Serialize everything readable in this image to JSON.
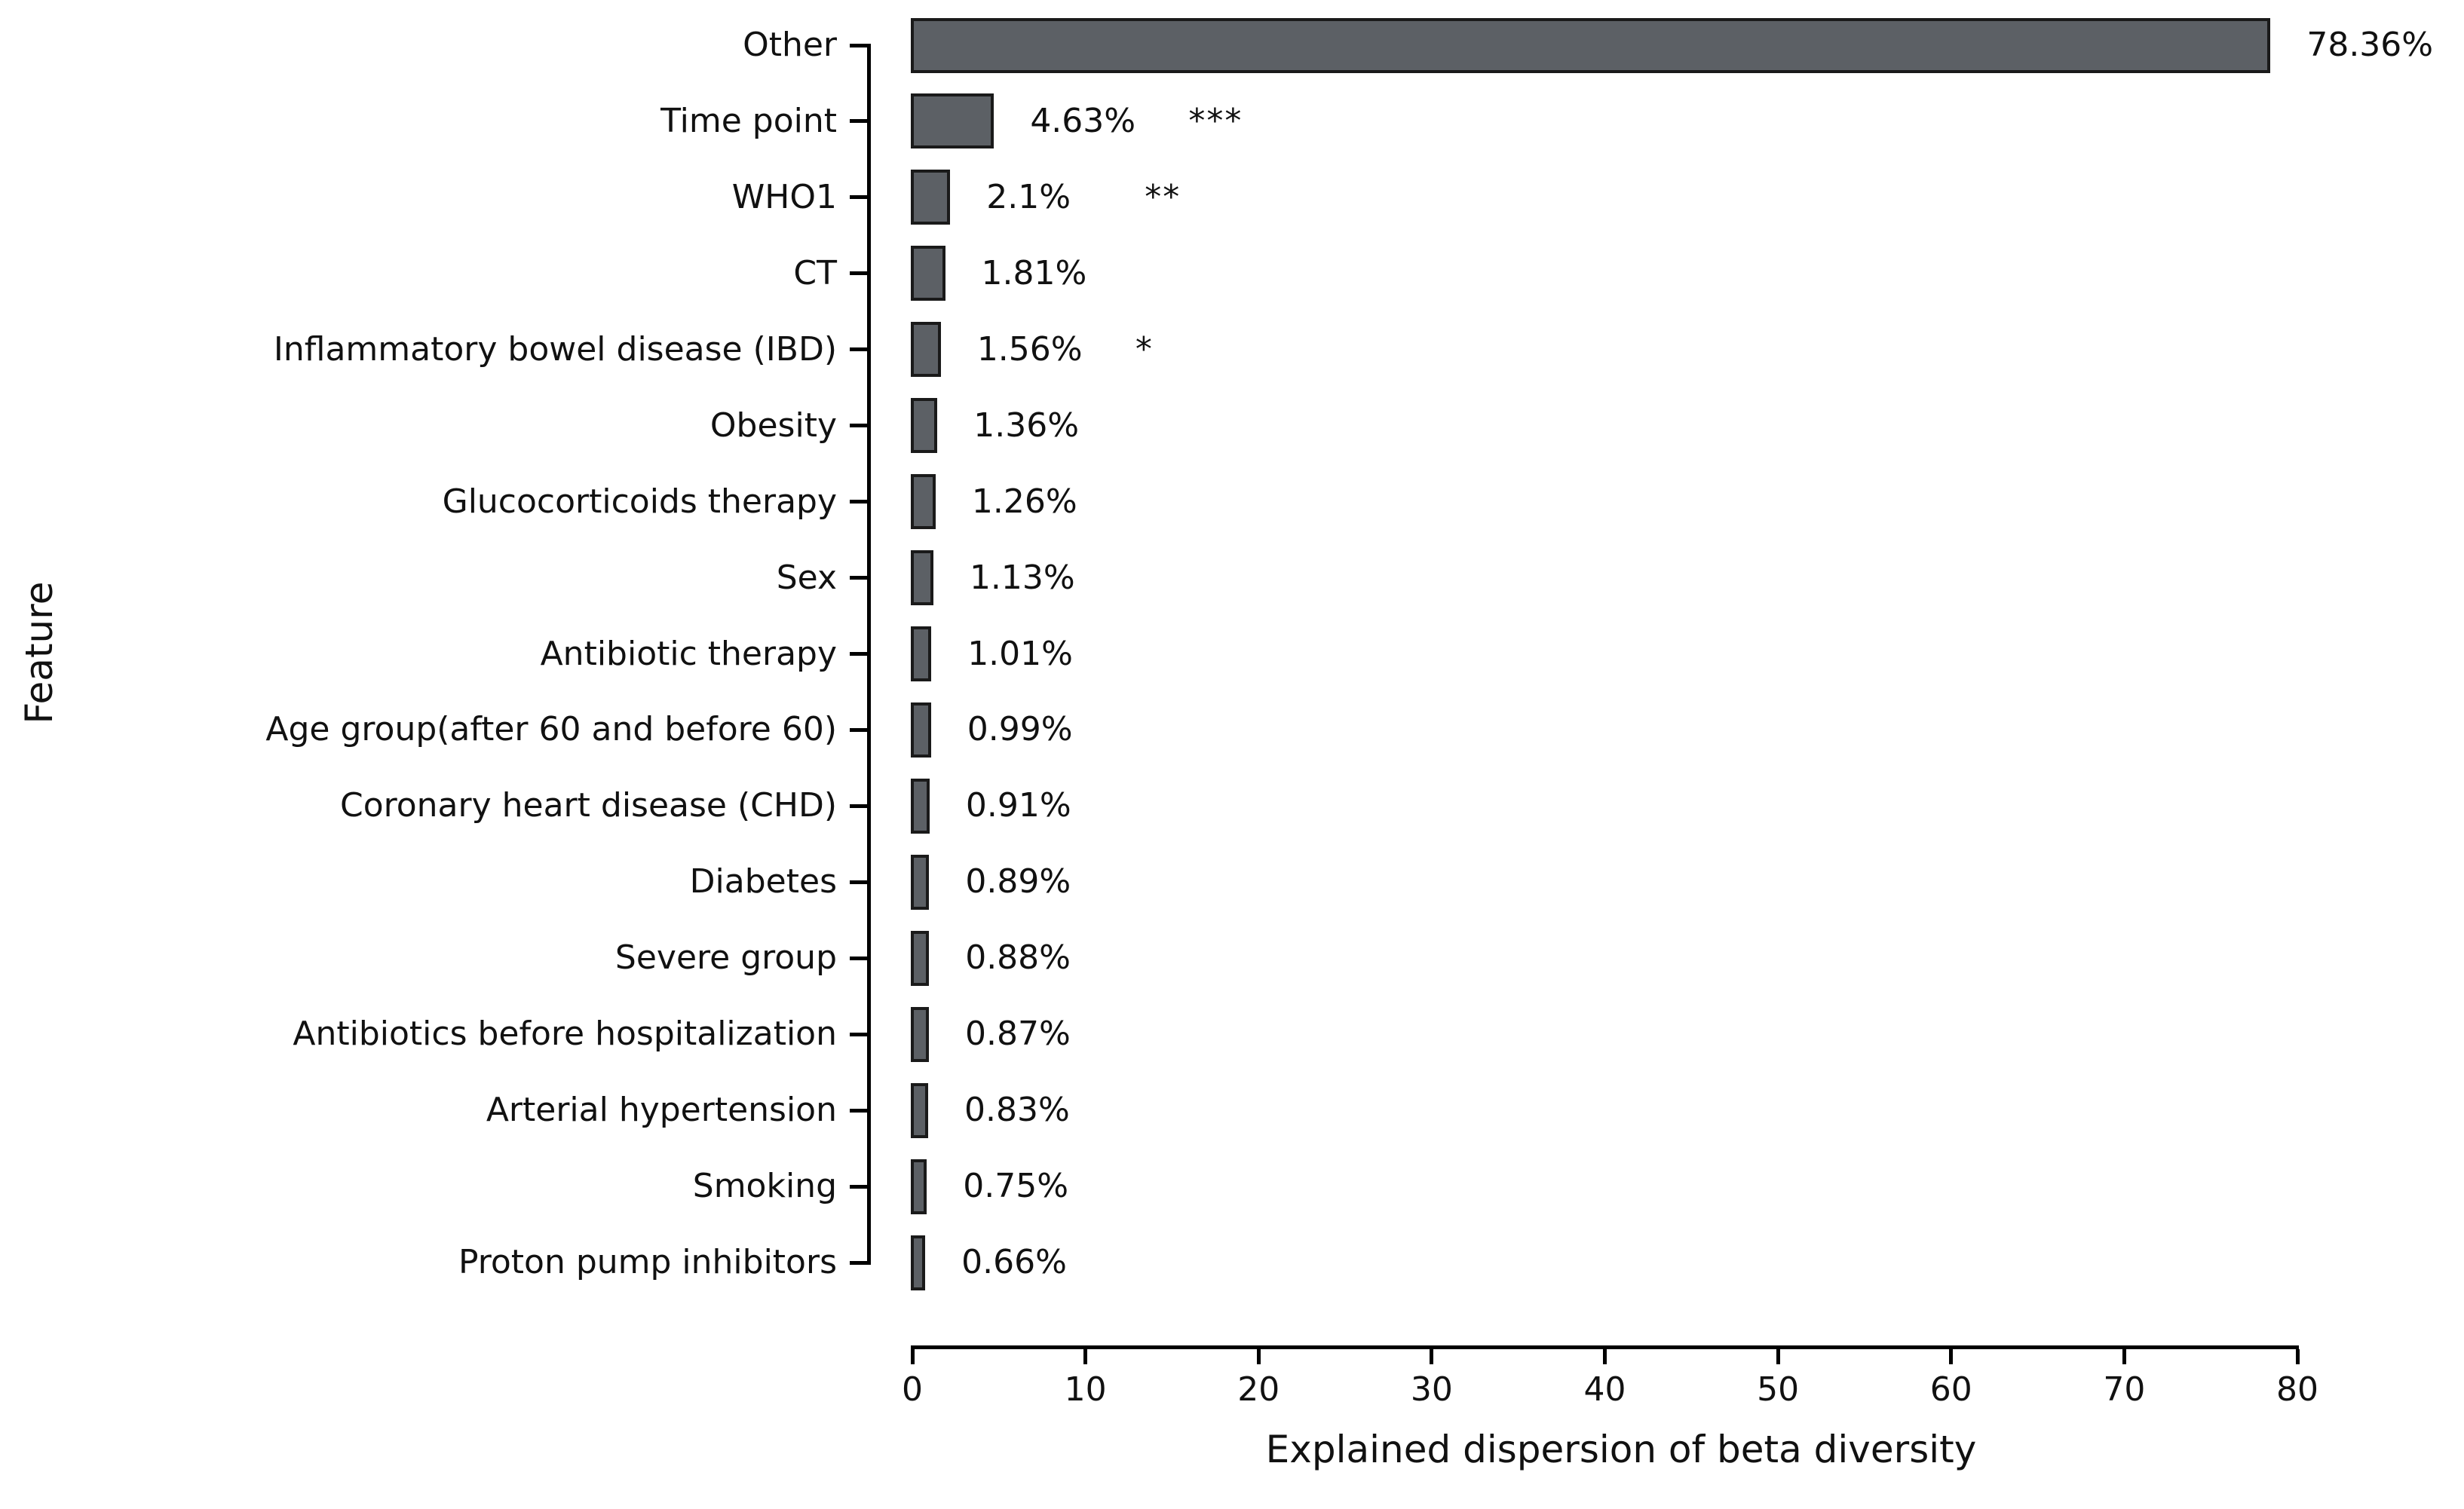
{
  "chart_data": {
    "type": "bar",
    "orientation": "horizontal",
    "title": "",
    "xlabel": "Explained dispersion of beta diversity",
    "ylabel": "Feature",
    "xlim": [
      0,
      80
    ],
    "xticks": [
      0,
      10,
      20,
      30,
      40,
      50,
      60,
      70,
      80
    ],
    "grid": false,
    "legend": false,
    "categories": [
      "Other",
      "Time point",
      "WHO1",
      "CT",
      "Inflammatory bowel disease (IBD)",
      "Obesity",
      "Glucocorticoids therapy",
      "Sex",
      "Antibiotic therapy",
      "Age group(after 60 and before 60)",
      "Coronary heart disease (CHD)",
      "Diabetes",
      "Severe group",
      "Antibiotics before hospitalization",
      "Arterial hypertension",
      "Smoking",
      "Proton pump inhibitors"
    ],
    "values": [
      78.36,
      4.63,
      2.1,
      1.81,
      1.56,
      1.36,
      1.26,
      1.13,
      1.01,
      0.99,
      0.91,
      0.89,
      0.88,
      0.87,
      0.83,
      0.75,
      0.66
    ],
    "value_labels": [
      "78.36%",
      "4.63%",
      "2.1%",
      "1.81%",
      "1.56%",
      "1.36%",
      "1.26%",
      "1.13%",
      "1.01%",
      "0.99%",
      "0.91%",
      "0.89%",
      "0.88%",
      "0.87%",
      "0.83%",
      "0.75%",
      "0.66%"
    ],
    "significance": [
      "",
      "***",
      "**",
      "",
      "*",
      "",
      "",
      "",
      "",
      "",
      "",
      "",
      "",
      "",
      "",
      "",
      ""
    ],
    "colors": {
      "bar_fill": "#5c6065",
      "bar_border": "#1a1a1a",
      "axis": "#000000",
      "text": "#111111",
      "background": "#ffffff"
    }
  }
}
